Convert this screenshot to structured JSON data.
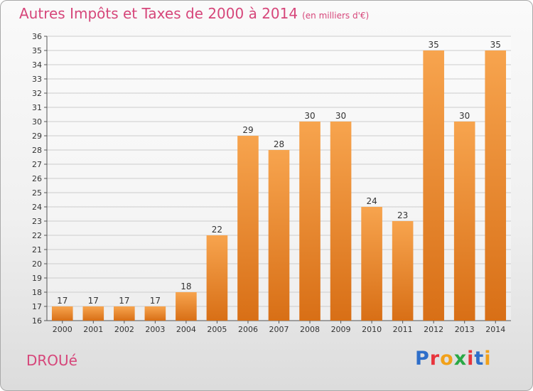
{
  "header": {
    "title": "Autres Impôts et Taxes de 2000 à 2014",
    "unit": "(en milliers d'€)"
  },
  "footer": {
    "commune": "DROUé",
    "logo_text": "Proxiti"
  },
  "colors": {
    "title": "#d6467a",
    "bar_top": "#f7a44e",
    "bar_bottom": "#d86f16",
    "grid": "#cccccc",
    "logo_letters": [
      "#2e6ec9",
      "#e8343c",
      "#f2a11a",
      "#2aa845",
      "#e8343c",
      "#2e6ec9",
      "#f2a11a"
    ]
  },
  "chart_data": {
    "type": "bar",
    "title": "Autres Impôts et Taxes de 2000 à 2014",
    "subtitle": "(en milliers d'€)",
    "categories": [
      "2000",
      "2001",
      "2002",
      "2003",
      "2004",
      "2005",
      "2006",
      "2007",
      "2008",
      "2009",
      "2010",
      "2011",
      "2012",
      "2013",
      "2014"
    ],
    "values": [
      17,
      17,
      17,
      17,
      18,
      22,
      29,
      28,
      30,
      30,
      24,
      23,
      35,
      30,
      35
    ],
    "ylim": [
      16,
      36
    ],
    "yticks": [
      16,
      17,
      18,
      19,
      20,
      21,
      22,
      23,
      24,
      25,
      26,
      27,
      28,
      29,
      30,
      31,
      32,
      33,
      34,
      35,
      36
    ],
    "grid": true,
    "xlabel": "",
    "ylabel": ""
  }
}
